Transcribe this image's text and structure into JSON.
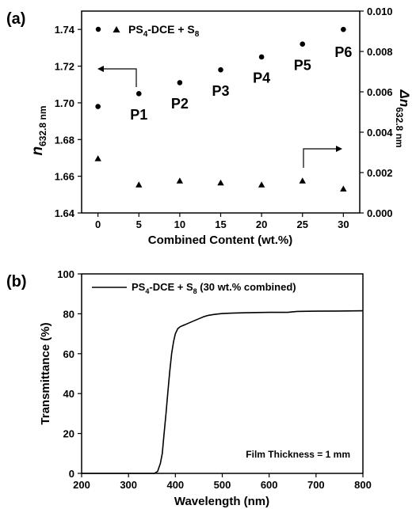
{
  "panel_a_label": "(a)",
  "panel_b_label": "(b)",
  "chart_data": [
    {
      "type": "scatter",
      "panel": "(a)",
      "xlabel": "Combined Content (wt.%)",
      "ylabel": {
        "base": "n",
        "sub": "632.8 nm"
      },
      "y2label": {
        "base": "Δn",
        "sub": "632.8 nm"
      },
      "xlim": [
        -2,
        32
      ],
      "ylim": [
        1.64,
        1.75
      ],
      "y2lim": [
        0.0,
        0.01
      ],
      "xticks": [
        0,
        5,
        10,
        15,
        20,
        25,
        30
      ],
      "yticks": [
        1.64,
        1.66,
        1.68,
        1.7,
        1.72,
        1.74
      ],
      "y2ticks": [
        0.0,
        0.002,
        0.004,
        0.006,
        0.008,
        0.01
      ],
      "ytick_labels": [
        "1.64",
        "1.66",
        "1.68",
        "1.70",
        "1.72",
        "1.74"
      ],
      "y2tick_labels": [
        "0.000",
        "0.002",
        "0.004",
        "0.006",
        "0.008",
        "0.010"
      ],
      "legend": {
        "text": "PS",
        "sub4": "4",
        "mid": "-DCE + S",
        "sub8": "8",
        "position": "top-left"
      },
      "series": [
        {
          "marker": "circle",
          "axis": "left",
          "x": [
            0,
            5,
            10,
            15,
            20,
            25,
            30
          ],
          "y": [
            1.698,
            1.705,
            1.711,
            1.718,
            1.725,
            1.732,
            1.74
          ]
        },
        {
          "marker": "triangle",
          "axis": "right",
          "x": [
            0,
            5,
            10,
            15,
            20,
            25,
            30
          ],
          "y": [
            0.0027,
            0.0014,
            0.0016,
            0.0015,
            0.0014,
            0.0016,
            0.0012
          ]
        }
      ],
      "point_labels": [
        {
          "text": "P1",
          "x": 5,
          "y": 1.6935
        },
        {
          "text": "P2",
          "x": 10,
          "y": 1.6995
        },
        {
          "text": "P3",
          "x": 15,
          "y": 1.7065
        },
        {
          "text": "P4",
          "x": 20,
          "y": 1.7135
        },
        {
          "text": "P5",
          "x": 25,
          "y": 1.7205
        },
        {
          "text": "P6",
          "x": 30,
          "y": 1.7275
        }
      ]
    },
    {
      "type": "line",
      "panel": "(b)",
      "xlabel": "Wavelength (nm)",
      "ylabel": "Transmittance (%)",
      "xlim": [
        200,
        800
      ],
      "ylim": [
        0,
        100
      ],
      "xticks": [
        200,
        300,
        400,
        500,
        600,
        700,
        800
      ],
      "yticks": [
        0,
        20,
        40,
        60,
        80,
        100
      ],
      "legend": {
        "text": "PS",
        "sub4": "4",
        "mid": "-DCE + S",
        "sub8": "8",
        "tail": " (30 wt.% combined)",
        "position": "top-left"
      },
      "annotation": "Film Thickness = 1 mm",
      "series": [
        {
          "x": [
            200,
            300,
            355,
            362,
            368,
            372,
            376,
            380,
            384,
            388,
            392,
            396,
            400,
            405,
            410,
            415,
            420,
            430,
            440,
            450,
            460,
            470,
            480,
            490,
            500,
            520,
            550,
            600,
            640,
            650,
            660,
            700,
            750,
            800
          ],
          "y": [
            0,
            0,
            0,
            1,
            5,
            10,
            20,
            30,
            41,
            51,
            60,
            66,
            70,
            72.5,
            73.5,
            74,
            74.5,
            75.5,
            76.5,
            77.5,
            78.5,
            79.2,
            79.6,
            79.9,
            80.1,
            80.3,
            80.5,
            80.7,
            80.7,
            81,
            81.2,
            81.3,
            81.4,
            81.5
          ]
        }
      ]
    }
  ]
}
